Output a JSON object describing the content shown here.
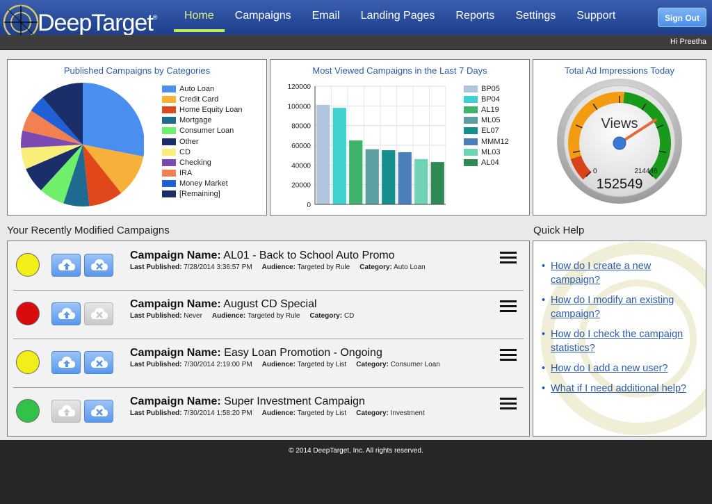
{
  "brand": {
    "name_part1": "Deep",
    "name_part2": "Target",
    "trademark": "®"
  },
  "nav": {
    "items": [
      {
        "label": "Home",
        "active": true
      },
      {
        "label": "Campaigns",
        "active": false
      },
      {
        "label": "Email",
        "active": false
      },
      {
        "label": "Landing Pages",
        "active": false
      },
      {
        "label": "Reports",
        "active": false
      },
      {
        "label": "Settings",
        "active": false
      },
      {
        "label": "Support",
        "active": false
      }
    ],
    "signout_label": "Sign Out",
    "greeting": "Hi Preetha"
  },
  "pie": {
    "title": "Published Campaigns by Categories"
  },
  "bar": {
    "title": "Most Viewed Campaigns in the Last 7 Days"
  },
  "gauge": {
    "title": "Total Ad Impressions Today",
    "label": "Views",
    "min_label": "0",
    "max_label": "214446",
    "value_label": "152549",
    "min": 0,
    "max": 214446,
    "value": 152549,
    "colors": {
      "low": "#d9431a",
      "mid": "#f39c12",
      "high": "#1a9a1a"
    }
  },
  "chart_data": [
    {
      "type": "pie",
      "title": "Published Campaigns by Categories",
      "categories": [
        "Auto Loan",
        "Credit Card",
        "Home Equity Loan",
        "Mortgage",
        "Consumer Loan",
        "Other",
        "CD",
        "Checking",
        "IRA",
        "Money Market",
        "[Remaining]"
      ],
      "values": [
        25,
        10,
        8,
        6,
        6,
        6,
        5,
        4,
        5,
        4,
        10
      ],
      "colors": [
        "#4a8ef0",
        "#f7b13b",
        "#e0471a",
        "#1f6a8f",
        "#6ef06a",
        "#1a2e6a",
        "#f9ee7a",
        "#7a4ab0",
        "#f28050",
        "#2060d6",
        "#1a2e6a"
      ]
    },
    {
      "type": "bar",
      "title": "Most Viewed Campaigns in the Last 7 Days",
      "categories": [
        "BP05",
        "BP04",
        "AL19",
        "ML05",
        "EL07",
        "MMM12",
        "ML03",
        "AL04"
      ],
      "values": [
        101000,
        98000,
        65000,
        56000,
        55000,
        53000,
        46000,
        43000
      ],
      "colors": [
        "#b0c4de",
        "#3fd0d0",
        "#3fb36b",
        "#5b9fa0",
        "#15908f",
        "#4b7fba",
        "#6fd3b4",
        "#2e8a55"
      ],
      "ylim": [
        0,
        120000
      ],
      "yticks": [
        0,
        20000,
        40000,
        60000,
        80000,
        100000,
        120000
      ],
      "grid": true
    }
  ],
  "recent": {
    "title": "Your Recently Modified Campaigns",
    "name_label": "Campaign Name:",
    "last_published_label": "Last Published:",
    "audience_label": "Audience:",
    "category_label": "Category:",
    "campaigns": [
      {
        "status": "yellow",
        "status_color": "#f2ee1a",
        "publish_enabled": true,
        "unpublish_enabled": true,
        "name": "AL01 - Back to School Auto Promo",
        "last_published": "7/28/2014 3:36:57 PM",
        "audience": "Targeted by Rule",
        "category": "Auto Loan"
      },
      {
        "status": "red",
        "status_color": "#d80c0c",
        "publish_enabled": true,
        "unpublish_enabled": false,
        "name": "August CD Special",
        "last_published": "Never",
        "audience": "Targeted by Rule",
        "category": "CD"
      },
      {
        "status": "yellow",
        "status_color": "#f2ee1a",
        "publish_enabled": true,
        "unpublish_enabled": true,
        "name": "Easy Loan Promotion - Ongoing",
        "last_published": "7/30/2014 2:19:00 PM",
        "audience": "Targeted by List",
        "category": "Consumer Loan"
      },
      {
        "status": "green",
        "status_color": "#33c14a",
        "publish_enabled": false,
        "unpublish_enabled": true,
        "name": "Super Investment Campaign",
        "last_published": "7/30/2014 1:58:20 PM",
        "audience": "Targeted by List",
        "category": "Investment"
      }
    ]
  },
  "quickhelp": {
    "title": "Quick Help",
    "links": [
      "How do I create a new campaign?",
      "How do I modify an existing campaign?",
      "How do I check the campaign statistics?",
      "How do I add a new user?",
      "What if I need additional help?"
    ]
  },
  "footer": {
    "copyright": "© 2014 DeepTarget, Inc. All rights reserved."
  }
}
